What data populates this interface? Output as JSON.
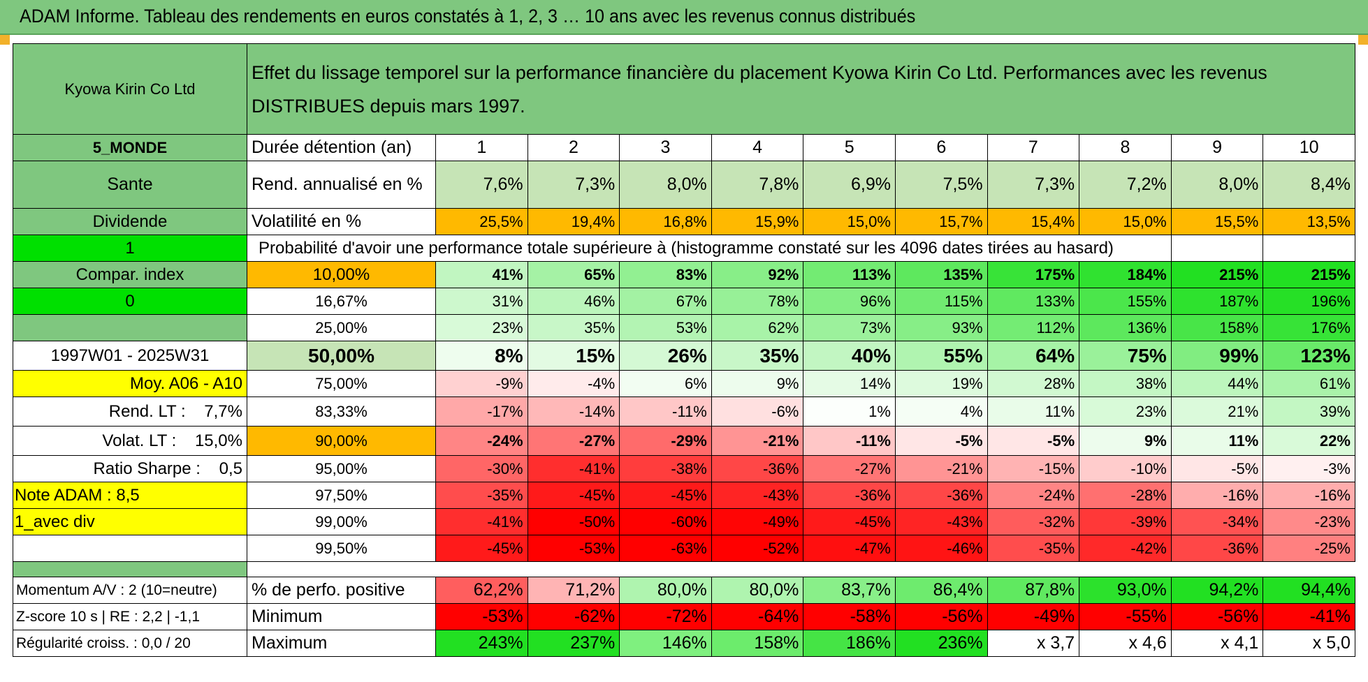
{
  "report_title": "ADAM Informe. Tableau des rendements en euros constatés à 1, 2, 3 … 10 ans avec les revenus connus distribués",
  "company": "Kyowa Kirin Co Ltd",
  "description": "Effet du lissage temporel sur la performance financière du placement Kyowa Kirin Co Ltd. Performances avec les revenus DISTRIBUES depuis mars 1997.",
  "region": "5_MONDE",
  "sector": "Sante",
  "income_type": "Dividende",
  "flag_1": "1",
  "compar_index": "Compar. index",
  "flag_0": "0",
  "period": "1997W01 - 2025W31",
  "avg_label": "Moy. A06 - A10",
  "rend_lt": "Rend. LT :    7,7%",
  "volat_lt": "Volat. LT :    15,0%",
  "sharpe": "Ratio Sharpe :    0,5",
  "note": "Note ADAM : 8,5",
  "mode": "1_avec div",
  "row_labels": {
    "duration": "Durée détention (an)",
    "annual_return": "Rend. annualisé en %",
    "volatility": "Volatilité en %",
    "probability": "Probabilité d'avoir une performance totale supérieure à (histogramme constaté sur les 4096 dates tirées au hasard)",
    "positive": "% de perfo. positive",
    "minimum": "Minimum",
    "maximum": "Maximum"
  },
  "years": [
    "1",
    "2",
    "3",
    "4",
    "5",
    "6",
    "7",
    "8",
    "9",
    "10"
  ],
  "annual_return": [
    "7,6%",
    "7,3%",
    "8,0%",
    "7,8%",
    "6,9%",
    "7,5%",
    "7,3%",
    "7,2%",
    "8,0%",
    "8,4%"
  ],
  "volatility": [
    "25,5%",
    "19,4%",
    "16,8%",
    "15,9%",
    "15,0%",
    "15,7%",
    "15,4%",
    "15,0%",
    "15,5%",
    "13,5%"
  ],
  "percentiles": [
    {
      "p": "10,00%",
      "values": [
        "41%",
        "65%",
        "83%",
        "92%",
        "113%",
        "135%",
        "175%",
        "184%",
        "215%",
        "215%"
      ]
    },
    {
      "p": "16,67%",
      "values": [
        "31%",
        "46%",
        "67%",
        "78%",
        "96%",
        "115%",
        "133%",
        "155%",
        "187%",
        "196%"
      ]
    },
    {
      "p": "25,00%",
      "values": [
        "23%",
        "35%",
        "53%",
        "62%",
        "73%",
        "93%",
        "112%",
        "136%",
        "158%",
        "176%"
      ]
    },
    {
      "p": "50,00%",
      "values": [
        "8%",
        "15%",
        "26%",
        "35%",
        "40%",
        "55%",
        "64%",
        "75%",
        "99%",
        "123%"
      ]
    },
    {
      "p": "75,00%",
      "values": [
        "-9%",
        "-4%",
        "6%",
        "9%",
        "14%",
        "19%",
        "28%",
        "38%",
        "44%",
        "61%"
      ]
    },
    {
      "p": "83,33%",
      "values": [
        "-17%",
        "-14%",
        "-11%",
        "-6%",
        "1%",
        "4%",
        "11%",
        "23%",
        "21%",
        "39%"
      ]
    },
    {
      "p": "90,00%",
      "values": [
        "-24%",
        "-27%",
        "-29%",
        "-21%",
        "-11%",
        "-5%",
        "-5%",
        "9%",
        "11%",
        "22%"
      ]
    },
    {
      "p": "95,00%",
      "values": [
        "-30%",
        "-41%",
        "-38%",
        "-36%",
        "-27%",
        "-21%",
        "-15%",
        "-10%",
        "-5%",
        "-3%"
      ]
    },
    {
      "p": "97,50%",
      "values": [
        "-35%",
        "-45%",
        "-45%",
        "-43%",
        "-36%",
        "-36%",
        "-24%",
        "-28%",
        "-16%",
        "-16%"
      ]
    },
    {
      "p": "99,00%",
      "values": [
        "-41%",
        "-50%",
        "-60%",
        "-49%",
        "-45%",
        "-43%",
        "-32%",
        "-39%",
        "-34%",
        "-23%"
      ]
    },
    {
      "p": "99,50%",
      "values": [
        "-45%",
        "-53%",
        "-63%",
        "-52%",
        "-47%",
        "-46%",
        "-35%",
        "-42%",
        "-36%",
        "-25%"
      ]
    }
  ],
  "bottom_left": {
    "momentum": "Momentum A/V : 2 (10=neutre)",
    "zscore": "Z-score 10 s | RE : 2,2 | -1,1",
    "regularity": "Régularité croiss. : 0,0 / 20"
  },
  "positive": [
    "62,2%",
    "71,2%",
    "80,0%",
    "80,0%",
    "83,7%",
    "86,4%",
    "87,8%",
    "93,0%",
    "94,2%",
    "94,4%"
  ],
  "minimum": [
    "-53%",
    "-62%",
    "-72%",
    "-64%",
    "-58%",
    "-56%",
    "-49%",
    "-55%",
    "-56%",
    "-41%"
  ],
  "maximum": [
    "243%",
    "237%",
    "146%",
    "158%",
    "186%",
    "236%",
    "x 3,7",
    "x 4,6",
    "x 4,1",
    "x 5,0"
  ],
  "colors": {
    "header_green": "#7fc77f",
    "light_green": "#c6e4b6",
    "bright_green": "#00e000",
    "orange": "#ffb900",
    "yellow": "#ffff00",
    "red_text": "#e00000",
    "scale_red": "#ff0000",
    "scale_white": "#ffffff",
    "scale_green": "#22e022"
  }
}
